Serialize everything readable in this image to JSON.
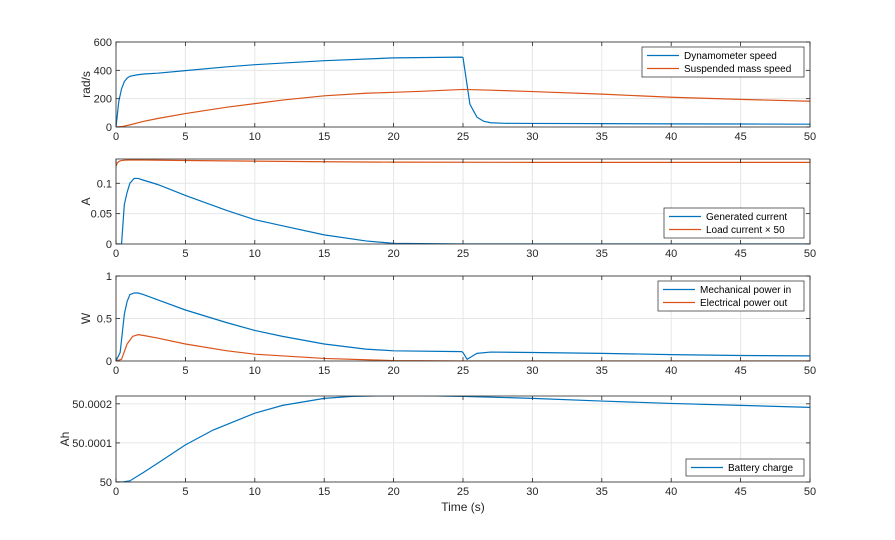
{
  "figure": {
    "xlabel": "Time (s)"
  },
  "colors": {
    "blue": "#0072BD",
    "orange": "#D95319",
    "grid": "#e6e6e6",
    "axis": "#262626"
  },
  "chart_data": [
    {
      "type": "line",
      "ylabel": "rad/s",
      "xlim": [
        0,
        50
      ],
      "ylim": [
        0,
        600
      ],
      "xticks": [
        0,
        5,
        10,
        15,
        20,
        25,
        30,
        35,
        40,
        45,
        50
      ],
      "yticks": [
        0,
        200,
        400,
        600
      ],
      "ytick_labels": [
        "0",
        "200",
        "400",
        "600"
      ],
      "grid": true,
      "legend_position": "top-right",
      "series": [
        {
          "name": "Dynamometer speed",
          "color": "#0072BD",
          "x": [
            0,
            0.2,
            0.4,
            0.6,
            0.8,
            1.0,
            1.5,
            2,
            3,
            5,
            8,
            10,
            15,
            20,
            24.9,
            25.0,
            25.5,
            26,
            26.5,
            27,
            28,
            30,
            35,
            40,
            45,
            50
          ],
          "y": [
            0,
            180,
            270,
            320,
            345,
            358,
            368,
            374,
            380,
            398,
            425,
            440,
            468,
            488,
            493,
            490,
            160,
            70,
            40,
            30,
            26,
            25,
            24,
            22,
            21,
            20
          ]
        },
        {
          "name": "Suspended mass speed",
          "color": "#D95319",
          "x": [
            0,
            0.5,
            1,
            2,
            3,
            5,
            8,
            10,
            12,
            15,
            18,
            20,
            22,
            25,
            27,
            30,
            35,
            40,
            45,
            50
          ],
          "y": [
            0,
            4,
            15,
            40,
            60,
            95,
            140,
            165,
            190,
            220,
            238,
            245,
            252,
            265,
            260,
            250,
            232,
            210,
            195,
            182
          ]
        }
      ]
    },
    {
      "type": "line",
      "ylabel": "A",
      "xlim": [
        0,
        50
      ],
      "ylim": [
        0,
        0.14
      ],
      "xticks": [
        0,
        5,
        10,
        15,
        20,
        25,
        30,
        35,
        40,
        45,
        50
      ],
      "yticks": [
        0,
        0.05,
        0.1
      ],
      "ytick_labels": [
        "0",
        "0.05",
        "0.1"
      ],
      "grid": true,
      "legend_position": "bottom-right",
      "series": [
        {
          "name": "Generated current",
          "color": "#0072BD",
          "x": [
            0,
            0.4,
            0.6,
            0.8,
            1.0,
            1.3,
            1.6,
            2,
            3,
            5,
            8,
            10,
            12,
            15,
            18,
            20,
            25,
            30,
            40,
            50
          ],
          "y": [
            0,
            0,
            0.065,
            0.085,
            0.1,
            0.108,
            0.108,
            0.105,
            0.098,
            0.08,
            0.055,
            0.04,
            0.03,
            0.015,
            0.005,
            0.001,
            0,
            0,
            0,
            0
          ]
        },
        {
          "name": "Load  current  × 50",
          "color": "#D95319",
          "x": [
            0,
            0.1,
            0.3,
            0.6,
            1,
            2,
            5,
            10,
            15,
            20,
            30,
            40,
            50
          ],
          "y": [
            0.128,
            0.134,
            0.137,
            0.138,
            0.1385,
            0.1383,
            0.1375,
            0.1365,
            0.1355,
            0.1348,
            0.1345,
            0.1345,
            0.1345
          ]
        }
      ]
    },
    {
      "type": "line",
      "ylabel": "W",
      "xlim": [
        0,
        50
      ],
      "ylim": [
        0,
        1
      ],
      "xticks": [
        0,
        5,
        10,
        15,
        20,
        25,
        30,
        35,
        40,
        45,
        50
      ],
      "yticks": [
        0,
        0.5,
        1
      ],
      "ytick_labels": [
        "0",
        "0.5",
        "1"
      ],
      "grid": true,
      "legend_position": "top-right",
      "series": [
        {
          "name": "Mechanical power in",
          "color": "#0072BD",
          "x": [
            0,
            0.3,
            0.6,
            0.8,
            1.0,
            1.3,
            1.6,
            2,
            3,
            5,
            8,
            10,
            12,
            15,
            18,
            20,
            24.9,
            25.0,
            25.3,
            25.6,
            26,
            27,
            30,
            35,
            40,
            45,
            50
          ],
          "y": [
            0,
            0.1,
            0.55,
            0.7,
            0.78,
            0.8,
            0.8,
            0.78,
            0.72,
            0.6,
            0.45,
            0.36,
            0.29,
            0.2,
            0.14,
            0.12,
            0.11,
            0.1,
            0.02,
            0.05,
            0.09,
            0.105,
            0.1,
            0.09,
            0.075,
            0.065,
            0.06
          ]
        },
        {
          "name": "Electrical power out",
          "color": "#D95319",
          "x": [
            0,
            0.4,
            0.8,
            1.2,
            1.6,
            2,
            3,
            5,
            8,
            10,
            15,
            20,
            25,
            30,
            40,
            50
          ],
          "y": [
            0,
            0.02,
            0.2,
            0.29,
            0.31,
            0.3,
            0.27,
            0.2,
            0.12,
            0.08,
            0.03,
            0.005,
            0,
            0,
            0,
            0
          ]
        }
      ]
    },
    {
      "type": "line",
      "ylabel": "Ah",
      "xlim": [
        0,
        50
      ],
      "ylim": [
        50,
        50.00022
      ],
      "xticks": [
        0,
        5,
        10,
        15,
        20,
        25,
        30,
        35,
        40,
        45,
        50
      ],
      "yticks": [
        50,
        50.0001,
        50.0002
      ],
      "ytick_labels": [
        "50",
        "50.0001",
        "50.0002"
      ],
      "grid": true,
      "legend_position": "bottom-right",
      "series": [
        {
          "name": "Battery charge",
          "color": "#0072BD",
          "x": [
            0,
            0.5,
            1,
            2,
            3,
            5,
            7,
            10,
            12,
            15,
            17,
            20,
            22,
            25,
            30,
            35,
            40,
            45,
            50
          ],
          "y": [
            50,
            50,
            50.000003,
            50.000025,
            50.000048,
            50.000095,
            50.000133,
            50.000176,
            50.000196,
            50.000214,
            50.000219,
            50.000221,
            50.000221,
            50.000219,
            50.000214,
            50.000207,
            50.000201,
            50.000196,
            50.000191
          ]
        }
      ]
    }
  ]
}
